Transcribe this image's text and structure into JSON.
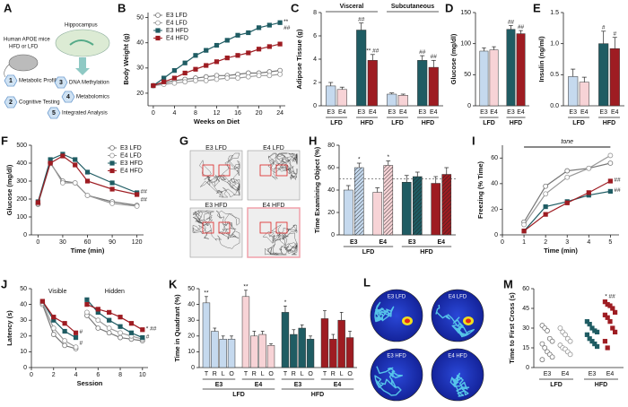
{
  "panel_a": {
    "label": "A",
    "mice": "Human APOE mice",
    "diet": "HFD or LFD",
    "region": "Hippocampus",
    "steps": [
      {
        "number": 1,
        "label": "Metabolic Profiling"
      },
      {
        "number": 2,
        "label": "Cognitive Testing"
      },
      {
        "number": 3,
        "label": "DNA Methylation"
      },
      {
        "number": 4,
        "label": "Metabolomics"
      },
      {
        "number": 5,
        "label": "Integrated Analysis"
      }
    ]
  },
  "panel_g": {
    "label": "G",
    "images": [
      "E3 LFD",
      "E4 LFD",
      "E3 HFD",
      "E4 HFD"
    ]
  },
  "panel_l": {
    "label": "L",
    "images": [
      "E3 LFD",
      "E4 LFD",
      "E3 HFD",
      "E4 HFD"
    ]
  },
  "chart_data": [
    {
      "type": "line",
      "label": "B",
      "ylabel": "Body Weight (g)",
      "xlabel": "Weeks on Diet",
      "x": [
        0,
        2,
        4,
        6,
        8,
        10,
        12,
        14,
        16,
        18,
        20,
        22,
        24
      ],
      "xlim": [
        -1,
        25
      ],
      "xticks": [
        0,
        4,
        8,
        12,
        16,
        20,
        24
      ],
      "ylim": [
        15,
        52
      ],
      "yticks": [
        20,
        30,
        40,
        50
      ],
      "legend": "upper left",
      "series": [
        {
          "name": "E3 LFD",
          "color": "#777777",
          "marker": "circle-open",
          "values": [
            23,
            24,
            25,
            25.5,
            26,
            26.5,
            27,
            27,
            27.5,
            28,
            28,
            28.5,
            29
          ]
        },
        {
          "name": "E4 LFD",
          "color": "#999999",
          "marker": "circle-open",
          "values": [
            23,
            23.5,
            24,
            24.5,
            25,
            25,
            25.5,
            26,
            26,
            26.5,
            27,
            27,
            27.5
          ]
        },
        {
          "name": "E3 HFD",
          "color": "#1f5c63",
          "marker": "square",
          "values": [
            23,
            26,
            29,
            32,
            35,
            37,
            39,
            41,
            43,
            44,
            46,
            47,
            48
          ]
        },
        {
          "name": "E4 HFD",
          "color": "#9e1c22",
          "marker": "square",
          "values": [
            23,
            24.5,
            26,
            28,
            29.5,
            31,
            32.5,
            34,
            35,
            36,
            37.5,
            38.5,
            39.5
          ]
        }
      ],
      "annotations": [
        {
          "series": 2,
          "x": 24,
          "text": "**"
        },
        {
          "series": 2,
          "x": 24,
          "text": "##"
        }
      ]
    },
    {
      "type": "bar",
      "label": "C",
      "ylabel": "Adipose Tissue (g)",
      "ylim": [
        0,
        8
      ],
      "yticks": [
        0,
        2,
        4,
        6,
        8
      ],
      "sections": [
        "Visceral",
        "Subcutaneous"
      ],
      "categories": [
        "E3",
        "E4",
        "E3",
        "E4",
        "E3",
        "E4",
        "E3",
        "E4"
      ],
      "groups": [
        "LFD",
        "HFD",
        "LFD",
        "HFD"
      ],
      "colors": [
        "#c5d9ee",
        "#f7d3d6",
        "#1f5c63",
        "#9e1c22",
        "#c5d9ee",
        "#f7d3d6",
        "#1f5c63",
        "#9e1c22"
      ],
      "values": [
        1.7,
        1.4,
        6.5,
        3.9,
        1.0,
        0.9,
        3.9,
        3.3
      ],
      "errors": [
        0.3,
        0.2,
        0.6,
        0.5,
        0.1,
        0.1,
        0.4,
        0.6
      ],
      "annotations": [
        {
          "index": 2,
          "text": "##"
        },
        {
          "index": 3,
          "text": "** ##"
        },
        {
          "index": 6,
          "text": "##"
        },
        {
          "index": 7,
          "text": "##"
        }
      ]
    },
    {
      "type": "bar",
      "label": "D",
      "ylabel": "Glucose (mg/dl)",
      "ylim": [
        0,
        150
      ],
      "yticks": [
        0,
        50,
        100,
        150
      ],
      "categories": [
        "E3",
        "E4",
        "E3",
        "E4"
      ],
      "groups": [
        "LFD",
        "HFD"
      ],
      "colors": [
        "#c5d9ee",
        "#f7d3d6",
        "#1f5c63",
        "#9e1c22"
      ],
      "values": [
        88,
        90,
        123,
        116
      ],
      "errors": [
        5,
        5,
        6,
        5
      ],
      "annotations": [
        {
          "index": 2,
          "text": "##"
        },
        {
          "index": 3,
          "text": "##"
        }
      ]
    },
    {
      "type": "bar",
      "label": "E",
      "ylabel": "Insulin (ng/ml)",
      "ylim": [
        0,
        1.5
      ],
      "yticks": [
        {
          "value": 0,
          "label": "0.0"
        },
        {
          "value": 0.5,
          "label": "0.5"
        },
        {
          "value": 1,
          "label": "1.0"
        },
        {
          "value": 1.5,
          "label": "1.5"
        }
      ],
      "categories": [
        "E3",
        "E4",
        "E3",
        "E4"
      ],
      "groups": [
        "LFD",
        "HFD"
      ],
      "colors": [
        "#c5d9ee",
        "#f7d3d6",
        "#1f5c63",
        "#9e1c22"
      ],
      "values": [
        0.47,
        0.38,
        1.0,
        0.92
      ],
      "errors": [
        0.12,
        0.08,
        0.2,
        0.18
      ],
      "annotations": [
        {
          "index": 2,
          "text": "#"
        },
        {
          "index": 3,
          "text": "#"
        }
      ]
    },
    {
      "type": "line",
      "label": "F",
      "ylabel": "Glucose (mg/dl)",
      "xlabel": "Time (min)",
      "x": [
        0,
        15,
        30,
        45,
        60,
        90,
        120
      ],
      "xlim": [
        -8,
        128
      ],
      "xticks": [
        0,
        30,
        60,
        90,
        120
      ],
      "ylim": [
        0,
        500
      ],
      "yticks": [
        0,
        100,
        200,
        300,
        400,
        500
      ],
      "legend": "upper right",
      "series": [
        {
          "name": "E3 LFD",
          "color": "#777777",
          "marker": "circle-open",
          "values": [
            170,
            400,
            300,
            290,
            220,
            185,
            165
          ]
        },
        {
          "name": "E4 LFD",
          "color": "#999999",
          "marker": "circle-open",
          "values": [
            175,
            405,
            290,
            290,
            220,
            175,
            160
          ]
        },
        {
          "name": "E3 HFD",
          "color": "#1f5c63",
          "marker": "square",
          "values": [
            185,
            420,
            450,
            420,
            350,
            290,
            235
          ]
        },
        {
          "name": "E4 HFD",
          "color": "#9e1c22",
          "marker": "square",
          "values": [
            180,
            400,
            440,
            390,
            300,
            255,
            225
          ]
        }
      ],
      "annotations": [
        {
          "series": 2,
          "x": 120,
          "text": "##"
        },
        {
          "series": 3,
          "x": 120,
          "text": "##"
        }
      ]
    },
    {
      "type": "bar",
      "label": "H",
      "ylabel": "Time Examining Object (%)",
      "ylim": [
        0,
        80
      ],
      "yticks": [
        0,
        20,
        40,
        60,
        80
      ],
      "categories": [
        null,
        null,
        null,
        null,
        null,
        null,
        null,
        null
      ],
      "groups": [
        "E3",
        "E4",
        "E3",
        "E4"
      ],
      "supergroups": [
        "LFD",
        "HFD"
      ],
      "colors": [
        "#c5d9ee",
        "#c5d9ee",
        "#f7d3d6",
        "#f7d3d6",
        "#1f5c63",
        "#1f5c63",
        "#9e1c22",
        "#9e1c22"
      ],
      "hatched": [
        false,
        true,
        false,
        true,
        false,
        true,
        false,
        true
      ],
      "values": [
        40,
        60,
        38,
        62,
        47,
        52,
        46,
        54
      ],
      "errors": [
        4,
        4,
        4,
        4,
        6,
        4,
        6,
        6
      ],
      "reference_line": 50,
      "annotations": [
        {
          "index": 1,
          "text": "*"
        },
        {
          "index": 3,
          "text": "*"
        }
      ]
    },
    {
      "type": "line",
      "label": "I",
      "ylabel": "Freezing (% Time)",
      "xlabel": "Time (min)",
      "tone": "tone",
      "x": [
        1,
        2,
        3,
        4,
        5
      ],
      "xlim": [
        0,
        5.4
      ],
      "xticks": [
        0,
        1,
        2,
        3,
        4,
        5
      ],
      "ylim": [
        0,
        70
      ],
      "yticks": [
        0,
        20,
        40,
        60
      ],
      "series": [
        {
          "color": "#777777",
          "marker": "circle-open",
          "values": [
            10,
            38,
            50,
            52,
            56
          ]
        },
        {
          "color": "#999999",
          "marker": "circle-open",
          "values": [
            8,
            32,
            45,
            52,
            62
          ]
        },
        {
          "color": "#1f5c63",
          "marker": "square",
          "values": [
            3,
            22,
            26,
            31,
            34
          ]
        },
        {
          "color": "#9e1c22",
          "marker": "square",
          "values": [
            3,
            16,
            25,
            33,
            42
          ]
        }
      ],
      "annotations": [
        {
          "series": 3,
          "x": 5,
          "text": "##"
        },
        {
          "series": 2,
          "x": 5,
          "text": "##"
        }
      ]
    },
    {
      "type": "line",
      "label": "J",
      "ylabel": "Latency (s)",
      "xlabel": "Session",
      "phases": [
        {
          "label": "Visible",
          "start": 1
        },
        {
          "label": "Hidden",
          "start": 5
        }
      ],
      "x": [
        1,
        2,
        3,
        4,
        5,
        6,
        7,
        8,
        9,
        10
      ],
      "xlim": [
        0,
        10.5
      ],
      "xticks": [
        0,
        2,
        4,
        6,
        8,
        10
      ],
      "ylim": [
        0,
        50
      ],
      "yticks": [
        0,
        10,
        20,
        30,
        40,
        50
      ],
      "series": [
        {
          "color": "#777777",
          "marker": "circle-open",
          "values": [
            40,
            21,
            14,
            12,
            33,
            25,
            22,
            19,
            18,
            17
          ]
        },
        {
          "color": "#999999",
          "marker": "circle-open",
          "values": [
            41,
            25,
            17,
            13,
            35,
            30,
            25,
            22,
            20,
            18
          ]
        },
        {
          "color": "#1f5c63",
          "marker": "square",
          "values": [
            42,
            30,
            23,
            19,
            43,
            35,
            30,
            26,
            22,
            19
          ]
        },
        {
          "color": "#9e1c22",
          "marker": "square",
          "values": [
            42,
            32,
            28,
            22,
            40,
            37,
            35,
            32,
            28,
            24
          ]
        }
      ],
      "annotations": [
        {
          "series": 3,
          "x": 4,
          "text": "#"
        },
        {
          "series": 2,
          "x": 4,
          "text": "#"
        },
        {
          "series": 3,
          "x": 10,
          "text": "* ##"
        },
        {
          "series": 2,
          "x": 10,
          "text": "#"
        }
      ]
    },
    {
      "type": "bar",
      "label": "K",
      "ylabel": "Time in Quadrant (%)",
      "ylim": [
        0,
        50
      ],
      "yticks": [
        0,
        10,
        20,
        30,
        40,
        50
      ],
      "categories": [
        "T",
        "R",
        "L",
        "O",
        "T",
        "R",
        "L",
        "O",
        "T",
        "R",
        "L",
        "O",
        "T",
        "R",
        "L",
        "O"
      ],
      "groups": [
        "E3",
        "E4",
        "E3",
        "E4"
      ],
      "supergroups": [
        "LFD",
        "HFD"
      ],
      "colors": [
        "#c5d9ee",
        "#c5d9ee",
        "#c5d9ee",
        "#c5d9ee",
        "#f7d3d6",
        "#f7d3d6",
        "#f7d3d6",
        "#f7d3d6",
        "#1f5c63",
        "#1f5c63",
        "#1f5c63",
        "#1f5c63",
        "#9e1c22",
        "#9e1c22",
        "#9e1c22",
        "#9e1c22"
      ],
      "values": [
        41,
        23,
        18,
        18,
        45,
        20,
        21,
        14,
        35,
        21,
        25,
        18,
        31,
        18,
        30,
        19
      ],
      "errors": [
        4,
        2,
        2,
        2,
        4,
        3,
        2,
        1,
        4,
        3,
        2,
        2,
        5,
        3,
        5,
        4
      ],
      "annotations": [
        {
          "index": 0,
          "text": "**"
        },
        {
          "index": 4,
          "text": "**"
        },
        {
          "index": 8,
          "text": "*"
        }
      ]
    },
    {
      "type": "strip",
      "label": "M",
      "ylabel": "Time to First Cross (s)",
      "ylim": [
        0,
        60
      ],
      "yticks": [
        0,
        15,
        30,
        45,
        60
      ],
      "categories": [
        "E3",
        "E4",
        "E3",
        "E4"
      ],
      "supergroups": [
        "LFD",
        "HFD"
      ],
      "colors": [
        "#777777",
        "#999999",
        "#1f5c63",
        "#9e1c22"
      ],
      "markers": [
        "circle-open",
        "circle-open",
        "square",
        "square"
      ],
      "values": [
        [
          32,
          30,
          28,
          22,
          20,
          18,
          15,
          12,
          10,
          8,
          6
        ],
        [
          30,
          27,
          25,
          22,
          20,
          17,
          15,
          14,
          12,
          10
        ],
        [
          35,
          33,
          30,
          28,
          27,
          25,
          22,
          20,
          18,
          16
        ],
        [
          50,
          48,
          47,
          45,
          42,
          40,
          38,
          35,
          30,
          27,
          20,
          15
        ]
      ],
      "annotations": [
        {
          "index": 3,
          "text": "* ##"
        }
      ]
    }
  ]
}
